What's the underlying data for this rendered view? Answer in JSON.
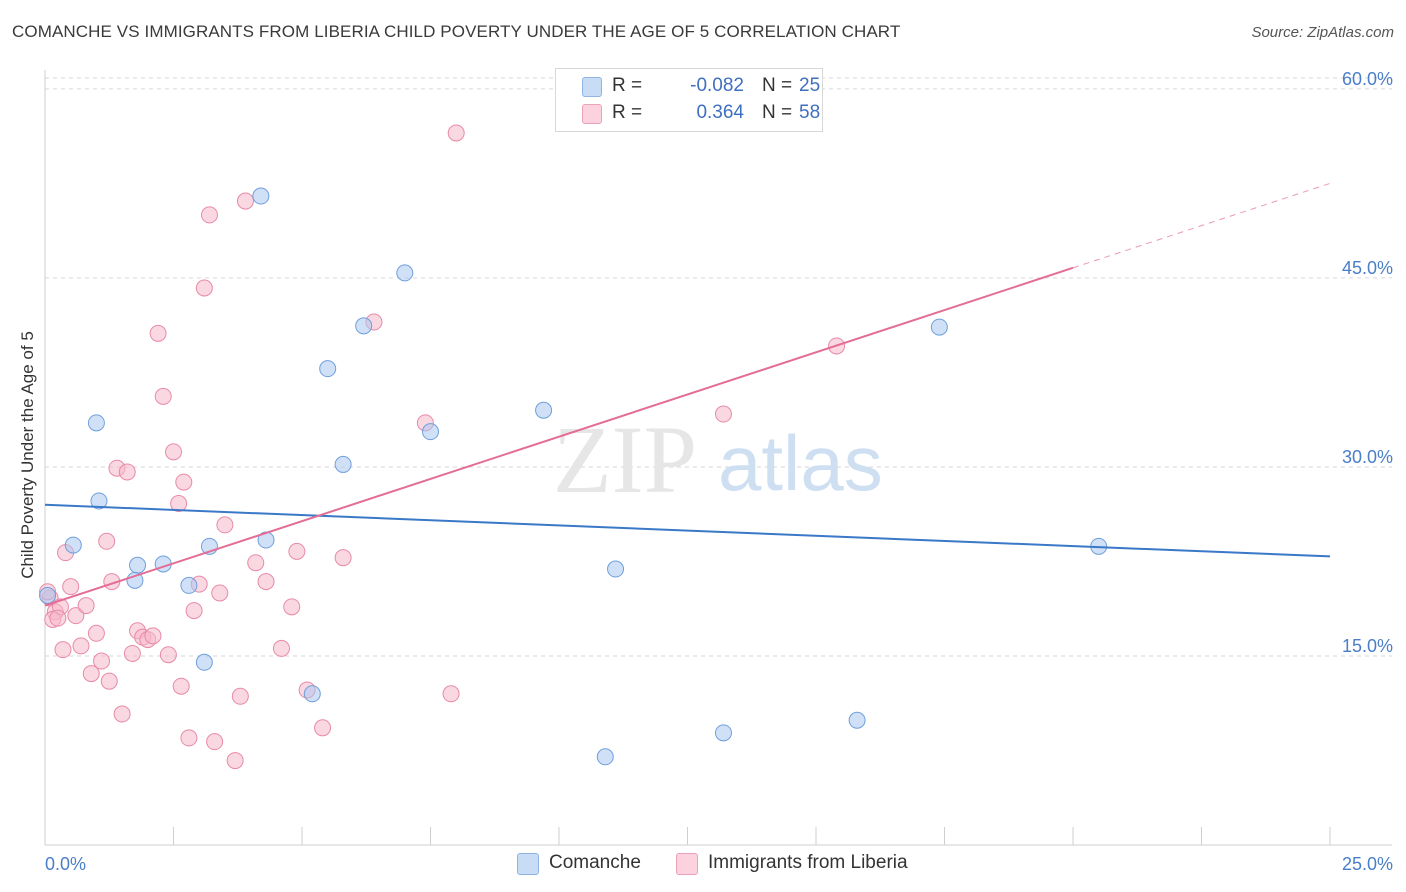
{
  "title": "COMANCHE VS IMMIGRANTS FROM LIBERIA CHILD POVERTY UNDER THE AGE OF 5 CORRELATION CHART",
  "source": "Source: ZipAtlas.com",
  "watermark": {
    "part1": "ZIP",
    "part2": "atlas"
  },
  "colors": {
    "comanche_fill": "#a9c8f0",
    "comanche_stroke": "#6f9fdc",
    "comanche_line": "#3a78c8",
    "liberia_fill": "#f6b8cb",
    "liberia_stroke": "#e88aa8",
    "liberia_line": "#e36d95",
    "tick_text": "#4a7ec9",
    "grid": "#d6d6d6"
  },
  "legend": {
    "rows": [
      {
        "r_label": "R =",
        "r_value": "-0.082",
        "n_label": "N =",
        "n_value": "25"
      },
      {
        "r_label": "R =",
        "r_value": "0.364",
        "n_label": "N =",
        "n_value": "58"
      }
    ]
  },
  "chart_data": {
    "type": "scatter",
    "xlabel": "",
    "ylabel": "Child Poverty Under the Age of 5",
    "xlim": [
      0,
      25
    ],
    "ylim": [
      0,
      61.5
    ],
    "x_tick_labels": {
      "left": "0.0%",
      "right": "25.0%"
    },
    "y_ticks": [
      {
        "value": 15,
        "label": "15.0%"
      },
      {
        "value": 30,
        "label": "30.0%"
      },
      {
        "value": 45,
        "label": "45.0%"
      },
      {
        "value": 60,
        "label": "60.0%"
      }
    ],
    "series": [
      {
        "name": "Comanche",
        "points": [
          [
            0.05,
            19.8
          ],
          [
            1.0,
            33.5
          ],
          [
            1.05,
            27.3
          ],
          [
            0.55,
            23.8
          ],
          [
            1.8,
            22.2
          ],
          [
            1.75,
            21.0
          ],
          [
            2.3,
            22.3
          ],
          [
            3.2,
            23.7
          ],
          [
            2.8,
            20.6
          ],
          [
            3.1,
            14.5
          ],
          [
            4.2,
            51.5
          ],
          [
            4.3,
            24.2
          ],
          [
            5.2,
            12.0
          ],
          [
            5.5,
            37.8
          ],
          [
            5.8,
            30.2
          ],
          [
            6.2,
            41.2
          ],
          [
            7.0,
            45.4
          ],
          [
            7.5,
            32.8
          ],
          [
            9.7,
            34.5
          ],
          [
            11.1,
            21.9
          ],
          [
            10.9,
            7.0
          ],
          [
            13.2,
            8.9
          ],
          [
            15.8,
            9.9
          ],
          [
            17.4,
            41.1
          ],
          [
            20.5,
            23.7
          ]
        ]
      },
      {
        "name": "Immigrants from Liberia",
        "points": [
          [
            0.1,
            19.6
          ],
          [
            0.2,
            18.5
          ],
          [
            0.3,
            18.9
          ],
          [
            0.4,
            23.2
          ],
          [
            0.5,
            20.5
          ],
          [
            0.6,
            18.2
          ],
          [
            0.7,
            15.8
          ],
          [
            0.8,
            19.0
          ],
          [
            0.9,
            13.6
          ],
          [
            1.0,
            16.8
          ],
          [
            1.1,
            14.6
          ],
          [
            1.2,
            24.1
          ],
          [
            1.3,
            20.9
          ],
          [
            1.4,
            29.9
          ],
          [
            1.5,
            10.4
          ],
          [
            1.6,
            29.6
          ],
          [
            1.7,
            15.2
          ],
          [
            1.8,
            17.0
          ],
          [
            1.9,
            16.5
          ],
          [
            2.0,
            16.3
          ],
          [
            2.1,
            16.6
          ],
          [
            2.2,
            40.6
          ],
          [
            2.3,
            35.6
          ],
          [
            2.4,
            15.1
          ],
          [
            2.5,
            31.2
          ],
          [
            2.6,
            27.1
          ],
          [
            2.7,
            28.8
          ],
          [
            2.8,
            8.5
          ],
          [
            2.9,
            18.6
          ],
          [
            3.0,
            20.7
          ],
          [
            3.1,
            44.2
          ],
          [
            3.2,
            50.0
          ],
          [
            3.3,
            8.2
          ],
          [
            3.4,
            20.0
          ],
          [
            3.5,
            25.4
          ],
          [
            3.7,
            6.7
          ],
          [
            3.8,
            11.8
          ],
          [
            3.9,
            51.1
          ],
          [
            4.1,
            22.4
          ],
          [
            4.3,
            20.9
          ],
          [
            4.6,
            15.6
          ],
          [
            4.8,
            18.9
          ],
          [
            4.9,
            23.3
          ],
          [
            5.1,
            12.3
          ],
          [
            5.4,
            9.3
          ],
          [
            5.8,
            22.8
          ],
          [
            6.4,
            41.5
          ],
          [
            7.4,
            33.5
          ],
          [
            7.9,
            12.0
          ],
          [
            8.0,
            56.5
          ],
          [
            13.2,
            34.2
          ],
          [
            15.4,
            39.6
          ],
          [
            0.15,
            17.9
          ],
          [
            0.35,
            15.5
          ],
          [
            1.25,
            13.0
          ],
          [
            2.65,
            12.6
          ],
          [
            0.05,
            20.1
          ],
          [
            0.25,
            18.0
          ]
        ]
      }
    ],
    "trend_lines": [
      {
        "series": "Comanche",
        "x_start": 0,
        "y_start": 27.0,
        "x_end": 25,
        "y_end": 22.9
      },
      {
        "series": "Immigrants from Liberia",
        "x_start": 0,
        "y_start": 19.0,
        "x_end": 20.0,
        "y_end": 45.8,
        "dashed_to_x": 25,
        "dashed_to_y": 52.5
      }
    ]
  }
}
